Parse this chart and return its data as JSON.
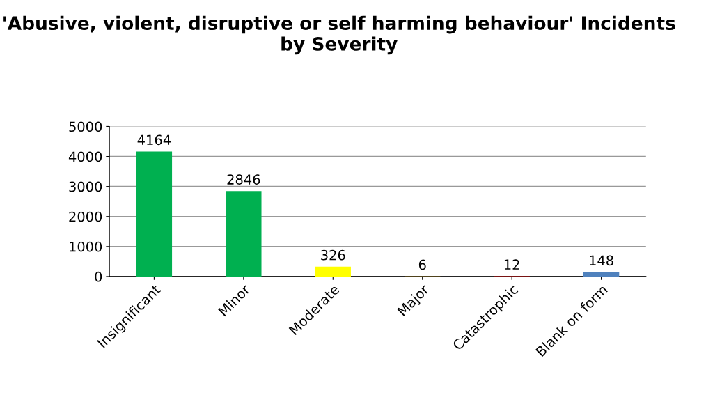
{
  "chart_data": {
    "type": "bar",
    "title": "'Abusive, violent, disruptive or self harming behaviour' Incidents by Severity",
    "categories": [
      "Insignificant",
      "Minor",
      "Moderate",
      "Major",
      "Catastrophic",
      "Blank on form"
    ],
    "values": [
      4164,
      2846,
      326,
      6,
      12,
      148
    ],
    "colors": [
      "#00b050",
      "#00b050",
      "#ffff00",
      "#cc9900",
      "#cc0000",
      "#4f81bd"
    ],
    "ylim": [
      0,
      5000
    ],
    "yticks": [
      0,
      1000,
      2000,
      3000,
      4000,
      5000
    ],
    "grid": "y",
    "data_labels": true
  }
}
